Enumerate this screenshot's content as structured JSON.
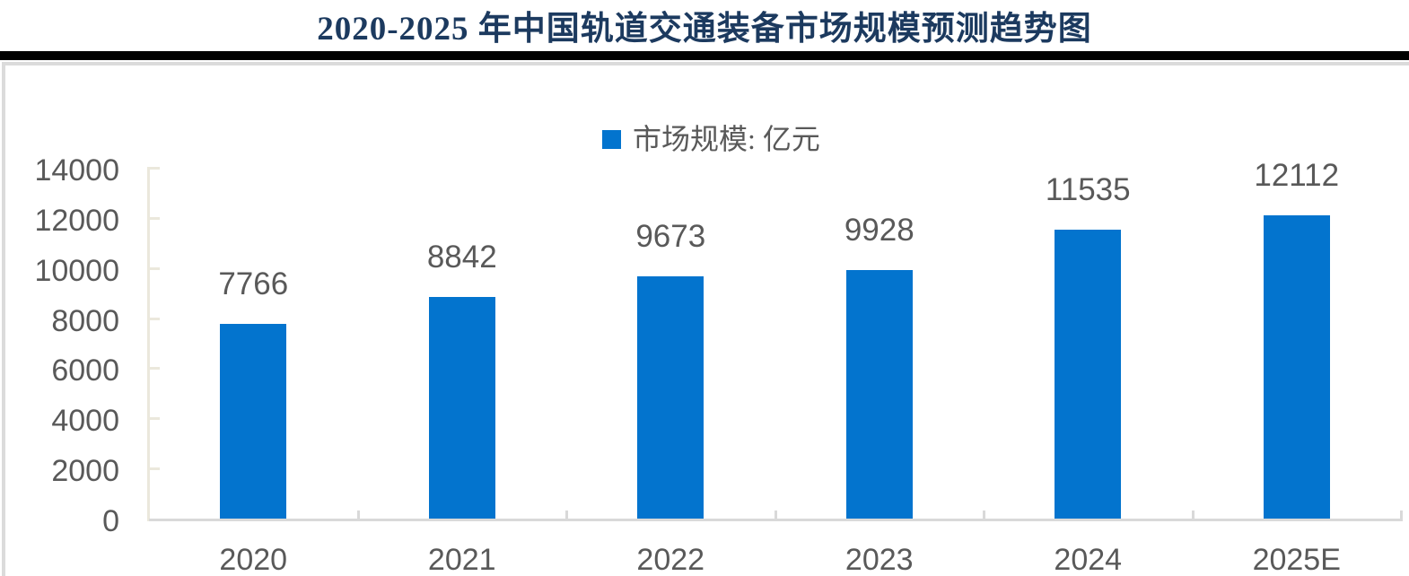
{
  "title": {
    "text": "2020-2025 年中国轨道交通装备市场规模预测趋势图",
    "color": "#1C3A5F"
  },
  "divider_color": "#000000",
  "frame_border_color": "#DBDBDB",
  "legend": {
    "label": "市场规模: 亿元",
    "marker_color": "#0374CE",
    "text_color": "#595959"
  },
  "axis": {
    "y_axis_color": "#EBE8DC",
    "x_axis_color": "#D9D9D9",
    "tick_label_color": "#595959"
  },
  "chart_data": {
    "type": "bar",
    "title": "2020-2025 年中国轨道交通装备市场规模预测趋势图",
    "categories": [
      "2020",
      "2021",
      "2022",
      "2023",
      "2024",
      "2025E"
    ],
    "values": [
      7766,
      8842,
      9673,
      9928,
      11535,
      12112
    ],
    "series_name": "市场规模: 亿元",
    "bar_color": "#0374CE",
    "data_labels": true,
    "data_label_color": "#595959",
    "xlabel": "",
    "ylabel": "",
    "ylim": [
      0,
      14000
    ],
    "yticks": [
      0,
      2000,
      4000,
      6000,
      8000,
      10000,
      12000,
      14000
    ],
    "grid": false,
    "legend_position": "top-center"
  }
}
